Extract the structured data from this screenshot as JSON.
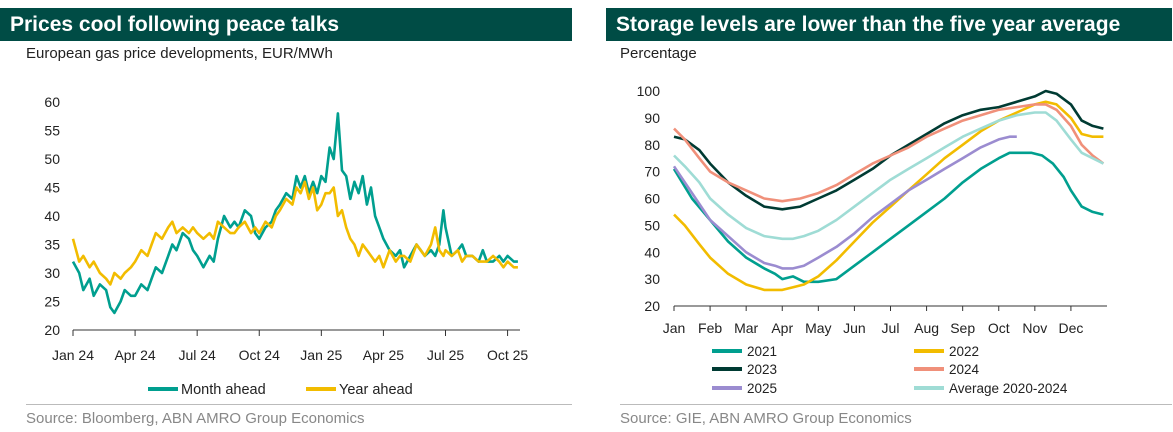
{
  "left": {
    "title": "Prices cool following peace talks",
    "subtitle": "European gas price developments, EUR/MWh",
    "source": "Source: Bloomberg, ABN AMRO Group Economics",
    "chart_data": {
      "type": "line",
      "title": "Prices cool following peace talks",
      "subtitle": "European gas price developments, EUR/MWh",
      "x_ticks": [
        "Jan 24",
        "Apr 24",
        "Jul 24",
        "Oct 24",
        "Jan 25",
        "Apr 25",
        "Jul 25",
        "Oct 25"
      ],
      "x_tick_positions_months": [
        0,
        3,
        6,
        9,
        12,
        15,
        18,
        21
      ],
      "xlim_months": [
        0,
        21.6
      ],
      "y_ticks": [
        20,
        25,
        30,
        35,
        40,
        45,
        50,
        55,
        60
      ],
      "ylim": [
        20,
        60
      ],
      "series": [
        {
          "name": "Month ahead",
          "color": "#009f8f",
          "x": [
            0,
            0.3,
            0.5,
            0.8,
            1,
            1.3,
            1.6,
            1.8,
            2,
            2.3,
            2.5,
            2.8,
            3,
            3.3,
            3.6,
            3.8,
            4,
            4.3,
            4.6,
            4.8,
            5,
            5.3,
            5.6,
            5.8,
            6,
            6.3,
            6.6,
            6.8,
            7,
            7.3,
            7.6,
            7.8,
            8,
            8.3,
            8.6,
            8.8,
            9,
            9.3,
            9.6,
            9.8,
            10,
            10.3,
            10.6,
            10.8,
            11,
            11.2,
            11.4,
            11.6,
            11.8,
            12,
            12.2,
            12.4,
            12.6,
            12.8,
            13,
            13.2,
            13.4,
            13.6,
            13.8,
            14,
            14.2,
            14.4,
            14.6,
            14.8,
            15,
            15.3,
            15.6,
            15.8,
            16,
            16.3,
            16.6,
            16.8,
            17,
            17.3,
            17.5,
            17.7,
            17.9,
            18,
            18.3,
            18.6,
            18.8,
            19,
            19.3,
            19.6,
            19.8,
            20,
            20.3,
            20.6,
            20.8,
            21,
            21.3,
            21.5
          ],
          "y": [
            32,
            30,
            27,
            29,
            26,
            28,
            27,
            24,
            23,
            25,
            27,
            26,
            26,
            28,
            27,
            29,
            31,
            30,
            33,
            35,
            34,
            37,
            36,
            34,
            33,
            31,
            33,
            32,
            36,
            40,
            38,
            39,
            38,
            41,
            40,
            37,
            36,
            38,
            39,
            41,
            42,
            44,
            43,
            47,
            45,
            47,
            44,
            46,
            44,
            47,
            46,
            52,
            50,
            58,
            48,
            47,
            43,
            46,
            44,
            47,
            42,
            45,
            40,
            38,
            36,
            34,
            33,
            34,
            31,
            33,
            35,
            34,
            33,
            34,
            33,
            35,
            41,
            38,
            33,
            34,
            35,
            33,
            33,
            32,
            34,
            32,
            32,
            33,
            32,
            33,
            32,
            32
          ]
        },
        {
          "name": "Year ahead",
          "color": "#f2bc00",
          "x": [
            0,
            0.3,
            0.5,
            0.8,
            1,
            1.3,
            1.6,
            1.8,
            2,
            2.3,
            2.5,
            2.8,
            3,
            3.3,
            3.6,
            3.8,
            4,
            4.3,
            4.6,
            4.8,
            5,
            5.3,
            5.6,
            5.8,
            6,
            6.3,
            6.6,
            6.8,
            7,
            7.3,
            7.6,
            7.8,
            8,
            8.3,
            8.6,
            8.8,
            9,
            9.3,
            9.6,
            9.8,
            10,
            10.3,
            10.6,
            10.8,
            11,
            11.2,
            11.4,
            11.6,
            11.8,
            12,
            12.2,
            12.4,
            12.6,
            12.8,
            13,
            13.2,
            13.4,
            13.6,
            13.8,
            14,
            14.2,
            14.4,
            14.6,
            14.8,
            15,
            15.3,
            15.6,
            15.8,
            16,
            16.3,
            16.6,
            16.8,
            17,
            17.3,
            17.5,
            17.7,
            17.9,
            18,
            18.3,
            18.6,
            18.8,
            19,
            19.3,
            19.6,
            19.8,
            20,
            20.3,
            20.6,
            20.8,
            21,
            21.3,
            21.5
          ],
          "y": [
            36,
            32,
            33,
            31,
            32,
            30,
            29,
            28,
            30,
            29,
            30,
            31,
            32,
            34,
            33,
            35,
            37,
            36,
            38,
            39,
            37,
            38,
            37,
            38,
            37,
            36,
            37,
            36,
            39,
            38,
            37,
            37,
            38,
            39,
            37,
            38,
            37,
            39,
            38,
            40,
            41,
            43,
            42,
            45,
            44,
            46,
            43,
            45,
            41,
            42,
            44,
            44,
            45,
            40,
            41,
            38,
            36,
            35,
            33,
            35,
            34,
            33,
            32,
            33,
            31,
            34,
            32,
            33,
            33,
            32,
            35,
            34,
            33,
            35,
            38,
            34,
            33,
            34,
            33,
            34,
            32,
            33,
            33,
            32,
            32,
            32,
            33,
            32,
            31,
            32,
            31,
            31
          ]
        }
      ],
      "legend": "bottom",
      "grid": false
    }
  },
  "right": {
    "title": "Storage levels are lower than the five year average",
    "subtitle": "Percentage",
    "source": "Source: GIE, ABN AMRO Group Economics",
    "chart_data": {
      "type": "line",
      "title": "Storage levels are lower than the five year average",
      "subtitle": "Percentage",
      "x_ticks": [
        "Jan",
        "Feb",
        "Mar",
        "Apr",
        "May",
        "Jun",
        "Jul",
        "Aug",
        "Sep",
        "Oct",
        "Nov",
        "Dec"
      ],
      "xlim_months": [
        0,
        12
      ],
      "y_ticks": [
        20,
        30,
        40,
        50,
        60,
        70,
        80,
        90,
        100
      ],
      "ylim": [
        20,
        100
      ],
      "series": [
        {
          "name": "2021",
          "color": "#009f8f",
          "x": [
            0,
            0.5,
            1,
            1.5,
            2,
            2.5,
            2.8,
            3,
            3.3,
            3.6,
            4,
            4.5,
            5,
            5.5,
            6,
            6.5,
            7,
            7.5,
            8,
            8.5,
            9,
            9.3,
            9.6,
            9.9,
            10.2,
            10.5,
            10.8,
            11,
            11.3,
            11.6,
            11.9
          ],
          "y": [
            71,
            60,
            52,
            44,
            38,
            34,
            32,
            30,
            31,
            29,
            29,
            30,
            35,
            40,
            45,
            50,
            55,
            60,
            66,
            71,
            75,
            77,
            77,
            77,
            76,
            73,
            68,
            63,
            57,
            55,
            54
          ]
        },
        {
          "name": "2022",
          "color": "#f2bc00",
          "x": [
            0,
            0.3,
            0.7,
            1,
            1.5,
            2,
            2.5,
            3,
            3.3,
            3.6,
            4,
            4.5,
            5,
            5.5,
            6,
            6.5,
            7,
            7.5,
            8,
            8.5,
            9,
            9.5,
            10,
            10.3,
            10.6,
            11,
            11.3,
            11.6,
            11.9
          ],
          "y": [
            54,
            50,
            43,
            38,
            32,
            28,
            26,
            26,
            27,
            28,
            31,
            37,
            44,
            51,
            57,
            63,
            69,
            75,
            80,
            85,
            89,
            92,
            95,
            96,
            95,
            90,
            84,
            83,
            83
          ]
        },
        {
          "name": "2023",
          "color": "#003b33",
          "x": [
            0,
            0.3,
            0.7,
            1,
            1.5,
            2,
            2.5,
            3,
            3.5,
            4,
            4.5,
            5,
            5.5,
            6,
            6.5,
            7,
            7.5,
            8,
            8.5,
            9,
            9.5,
            10,
            10.3,
            10.6,
            11,
            11.3,
            11.6,
            11.9
          ],
          "y": [
            83,
            82,
            78,
            73,
            66,
            61,
            57,
            56,
            57,
            60,
            63,
            67,
            71,
            76,
            80,
            84,
            88,
            91,
            93,
            94,
            96,
            98,
            100,
            99,
            95,
            89,
            87,
            86
          ]
        },
        {
          "name": "2024",
          "color": "#f0907a",
          "x": [
            0,
            0.3,
            0.7,
            1,
            1.5,
            2,
            2.5,
            3,
            3.5,
            4,
            4.5,
            5,
            5.5,
            6,
            6.5,
            7,
            7.5,
            8,
            8.5,
            9,
            9.5,
            10,
            10.3,
            10.6,
            11,
            11.3,
            11.6,
            11.9
          ],
          "y": [
            86,
            82,
            75,
            70,
            66,
            63,
            60,
            59,
            60,
            62,
            65,
            69,
            73,
            76,
            79,
            83,
            86,
            89,
            91,
            93,
            94,
            95,
            95,
            93,
            87,
            80,
            76,
            73
          ]
        },
        {
          "name": "2025",
          "color": "#9b8cd0",
          "x": [
            0,
            0.3,
            0.7,
            1,
            1.5,
            2,
            2.5,
            2.8,
            3,
            3.3,
            3.6,
            4,
            4.5,
            5,
            5.5,
            6,
            6.5,
            7,
            7.5,
            8,
            8.5,
            9,
            9.3,
            9.5
          ],
          "y": [
            72,
            66,
            58,
            52,
            46,
            40,
            36,
            35,
            34,
            34,
            35,
            38,
            42,
            47,
            53,
            58,
            63,
            67,
            71,
            75,
            79,
            82,
            83,
            83
          ]
        },
        {
          "name": "Average 2020-2024",
          "color": "#9fdcd5",
          "x": [
            0,
            0.3,
            0.7,
            1,
            1.5,
            2,
            2.5,
            3,
            3.3,
            3.6,
            4,
            4.5,
            5,
            5.5,
            6,
            6.5,
            7,
            7.5,
            8,
            8.5,
            9,
            9.5,
            10,
            10.3,
            10.6,
            11,
            11.3,
            11.6,
            11.9
          ],
          "y": [
            76,
            72,
            66,
            60,
            54,
            49,
            46,
            45,
            45,
            46,
            48,
            52,
            57,
            62,
            67,
            71,
            75,
            79,
            83,
            86,
            89,
            91,
            92,
            92,
            89,
            82,
            77,
            75,
            73
          ]
        }
      ],
      "legend": "bottom",
      "grid": false
    }
  }
}
